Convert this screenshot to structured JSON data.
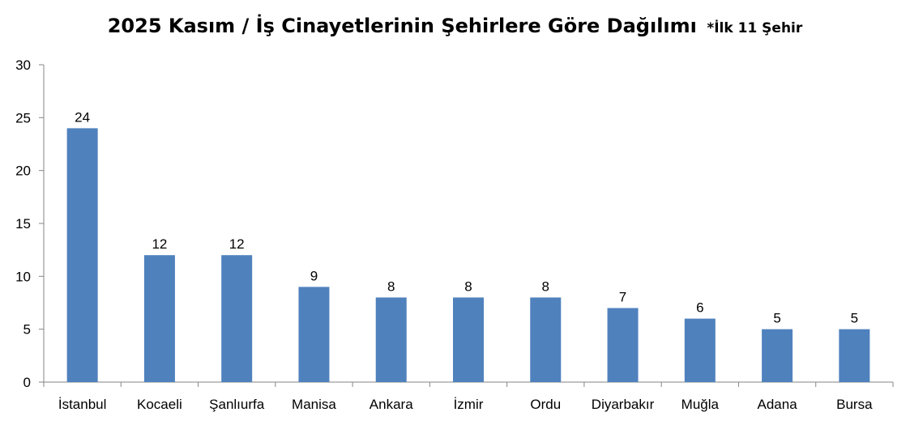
{
  "chart_data": {
    "type": "bar",
    "title": "2025 Kasım / İş Cinayetlerinin Şehirlere Göre Dağılımı",
    "subtitle": "*İlk 11 Şehir",
    "xlabel": "",
    "ylabel": "",
    "categories": [
      "İstanbul",
      "Kocaeli",
      "Şanlıurfa",
      "Manisa",
      "Ankara",
      "İzmir",
      "Ordu",
      "Diyarbakır",
      "Muğla",
      "Adana",
      "Bursa"
    ],
    "values": [
      24,
      12,
      12,
      9,
      8,
      8,
      8,
      7,
      6,
      5,
      5
    ],
    "ylim": [
      0,
      30
    ],
    "yticks": [
      "0",
      "5",
      "10",
      "15",
      "20",
      "25",
      "30"
    ],
    "grid": false,
    "legend": "none",
    "bar_color": "#4F81BD",
    "axis_color": "#868686"
  }
}
